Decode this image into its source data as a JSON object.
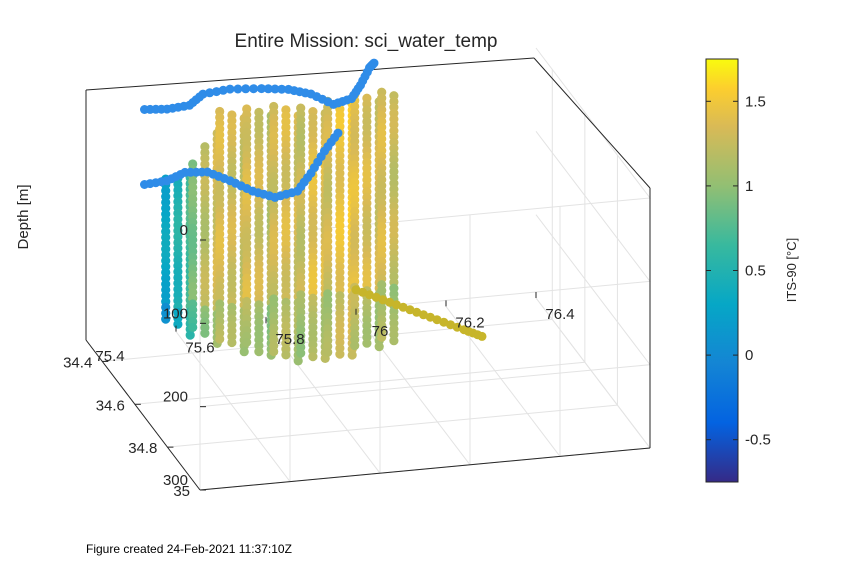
{
  "chart_data": {
    "type": "scatter",
    "title": "Entire Mission: sci_water_temp",
    "zlabel": "Depth [m]",
    "z_ticks": [
      "0",
      "100",
      "200",
      "300"
    ],
    "zlim": [
      0,
      300
    ],
    "z_reversed": true,
    "x_ticks": [
      "75.4",
      "75.6",
      "75.8",
      "76",
      "76.2",
      "76.4"
    ],
    "xlim": [
      75.4,
      76.4
    ],
    "y_ticks": [
      "34.4",
      "34.6",
      "34.8",
      "35"
    ],
    "ylim": [
      34.3,
      35.0
    ],
    "grid": true,
    "colorbar": {
      "label": "ITS-90 [°C]",
      "ticks": [
        "1.5",
        "1",
        "0.5",
        "0",
        "-0.5"
      ],
      "tick_values": [
        1.5,
        1.0,
        0.5,
        0.0,
        -0.5
      ],
      "range": [
        -0.75,
        1.75
      ],
      "colormap": "parula"
    },
    "highlight_colors": {
      "surface_track": "#2f8ce8",
      "bottom_track": "#c7b52a"
    },
    "profiles": [
      {
        "x": 75.53,
        "zmin": 80,
        "zmax": 250,
        "temp": 0.3
      },
      {
        "x": 75.55,
        "zmin": 75,
        "zmax": 255,
        "temp": 0.5
      },
      {
        "x": 75.57,
        "zmin": 70,
        "zmax": 260,
        "temp": 0.7
      },
      {
        "x": 75.59,
        "zmin": 65,
        "zmax": 265,
        "temp": 0.9
      },
      {
        "x": 75.61,
        "zmin": 40,
        "zmax": 270,
        "temp": 1.2
      },
      {
        "x": 75.63,
        "zmin": 20,
        "zmax": 275,
        "temp": 1.3
      },
      {
        "x": 75.65,
        "zmin": 5,
        "zmax": 278,
        "temp": 1.35
      },
      {
        "x": 75.67,
        "zmin": 5,
        "zmax": 282,
        "temp": 1.3
      },
      {
        "x": 75.69,
        "zmin": 5,
        "zmax": 286,
        "temp": 1.25
      },
      {
        "x": 75.71,
        "zmin": 5,
        "zmax": 290,
        "temp": 1.35
      },
      {
        "x": 75.73,
        "zmin": 5,
        "zmax": 294,
        "temp": 1.3
      },
      {
        "x": 75.75,
        "zmin": 5,
        "zmax": 298,
        "temp": 1.2
      },
      {
        "x": 75.77,
        "zmin": 5,
        "zmax": 300,
        "temp": 1.3
      },
      {
        "x": 75.79,
        "zmin": 5,
        "zmax": 302,
        "temp": 1.35
      },
      {
        "x": 75.81,
        "zmin": 8,
        "zmax": 304,
        "temp": 1.3
      },
      {
        "x": 75.83,
        "zmin": 10,
        "zmax": 306,
        "temp": 1.25
      },
      {
        "x": 75.85,
        "zmin": 10,
        "zmax": 308,
        "temp": 1.4
      },
      {
        "x": 75.87,
        "zmin": 8,
        "zmax": 308,
        "temp": 1.35
      },
      {
        "x": 75.89,
        "zmin": 5,
        "zmax": 308,
        "temp": 1.3
      },
      {
        "x": 75.91,
        "zmin": 3,
        "zmax": 306,
        "temp": 1.45
      },
      {
        "x": 75.93,
        "zmin": 0,
        "zmax": 304,
        "temp": 1.5
      },
      {
        "x": 75.95,
        "zmin": 0,
        "zmax": 302,
        "temp": 1.4
      },
      {
        "x": 75.97,
        "zmin": 0,
        "zmax": 300,
        "temp": 1.35
      },
      {
        "x": 75.99,
        "zmin": 0,
        "zmax": 298,
        "temp": 1.3
      },
      {
        "x": 76.01,
        "zmin": 0,
        "zmax": 296,
        "temp": 1.35
      },
      {
        "x": 76.03,
        "zmin": 0,
        "zmax": 294,
        "temp": 1.25
      }
    ],
    "surface_track": [
      {
        "x": 75.53,
        "y": 34.3,
        "z": 30
      },
      {
        "x": 75.58,
        "y": 34.3,
        "z": 32
      },
      {
        "x": 75.63,
        "y": 34.3,
        "z": 30
      },
      {
        "x": 75.66,
        "y": 34.3,
        "z": 18
      },
      {
        "x": 75.72,
        "y": 34.3,
        "z": 15
      },
      {
        "x": 75.79,
        "y": 34.3,
        "z": 18
      },
      {
        "x": 75.85,
        "y": 34.3,
        "z": 22
      },
      {
        "x": 75.9,
        "y": 34.3,
        "z": 30
      },
      {
        "x": 75.95,
        "y": 34.3,
        "z": 45
      },
      {
        "x": 75.99,
        "y": 34.3,
        "z": 40
      },
      {
        "x": 76.01,
        "y": 34.3,
        "z": 25
      },
      {
        "x": 76.03,
        "y": 34.3,
        "z": 5
      },
      {
        "x": 76.04,
        "y": 34.3,
        "z": 0
      }
    ],
    "lower_track": [
      {
        "x": 75.53,
        "y": 34.3,
        "z": 120
      },
      {
        "x": 75.58,
        "y": 34.3,
        "z": 118
      },
      {
        "x": 75.62,
        "y": 34.3,
        "z": 110
      },
      {
        "x": 75.67,
        "y": 34.3,
        "z": 112
      },
      {
        "x": 75.72,
        "y": 34.3,
        "z": 125
      },
      {
        "x": 75.77,
        "y": 34.3,
        "z": 140
      },
      {
        "x": 75.82,
        "y": 34.3,
        "z": 150
      },
      {
        "x": 75.87,
        "y": 34.3,
        "z": 145
      },
      {
        "x": 75.9,
        "y": 34.3,
        "z": 125
      },
      {
        "x": 75.93,
        "y": 34.3,
        "z": 100
      },
      {
        "x": 75.96,
        "y": 34.3,
        "z": 80
      }
    ],
    "bottom_track": [
      {
        "x": 76.0,
        "y": 34.3,
        "z": 270
      },
      {
        "x": 76.06,
        "y": 34.3,
        "z": 285
      },
      {
        "x": 76.12,
        "y": 34.3,
        "z": 300
      },
      {
        "x": 76.18,
        "y": 34.3,
        "z": 315
      },
      {
        "x": 76.24,
        "y": 34.3,
        "z": 330
      },
      {
        "x": 76.28,
        "y": 34.3,
        "z": 340
      }
    ]
  },
  "footer": "Figure created 24-Feb-2021 11:37:10Z"
}
